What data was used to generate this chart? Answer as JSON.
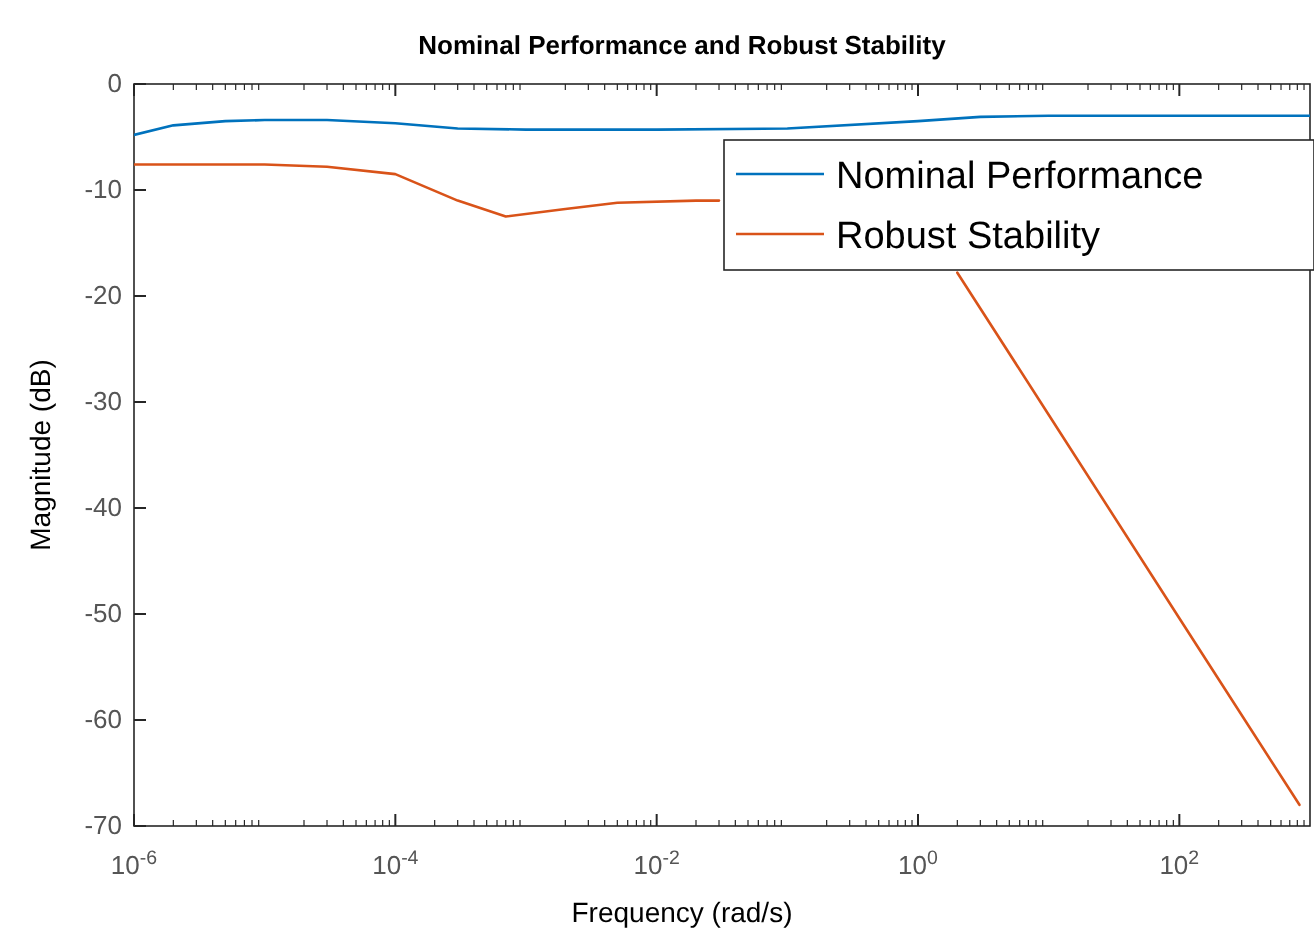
{
  "chart_data": {
    "type": "line",
    "title": "Nominal Performance and Robust Stability",
    "xlabel": "Frequency  (rad/s)",
    "ylabel": "Magnitude (dB)",
    "log": "x",
    "xlim": [
      1e-06,
      1000
    ],
    "ylim": [
      -70,
      0
    ],
    "xticks": [
      {
        "value": 1e-06,
        "label": "10$^{-6}$"
      },
      {
        "value": 0.0001,
        "label": "10$^{-4}$"
      },
      {
        "value": 0.01,
        "label": "10$^{-2}$"
      },
      {
        "value": 1,
        "label": "10$^{0}$"
      },
      {
        "value": 100,
        "label": "10$^{2}$"
      }
    ],
    "yticks": [
      -70,
      -60,
      -50,
      -40,
      -30,
      -20,
      -10,
      0
    ],
    "grid": false,
    "legend": "top right",
    "line_style": "solid",
    "marker": "none",
    "series": [
      {
        "name": "Nominal Performance",
        "color": "#0072bd",
        "x": [
          1e-06,
          2e-06,
          5e-06,
          1e-05,
          3e-05,
          0.0001,
          0.0003,
          0.001,
          0.01,
          0.1,
          1,
          3,
          10,
          100,
          1000
        ],
        "values": [
          -4.8,
          -3.9,
          -3.5,
          -3.4,
          -3.4,
          -3.7,
          -4.2,
          -4.3,
          -4.3,
          -4.2,
          -3.5,
          -3.1,
          -3,
          -3,
          -3
        ]
      },
      {
        "name": "Robust Stability",
        "color": "#d95319",
        "x": [
          1e-06,
          1e-05,
          3e-05,
          0.0001,
          0.0003,
          0.0007,
          0.002,
          0.005,
          0.02,
          0.03,
          0.1,
          1,
          2,
          10,
          100,
          830
        ],
        "values": [
          -7.6,
          -7.6,
          -7.8,
          -8.5,
          -11,
          -12.5,
          -11.8,
          -11.2,
          -11,
          -11,
          null,
          null,
          -17.8,
          -31.2,
          -50.4,
          -68
        ]
      }
    ]
  }
}
